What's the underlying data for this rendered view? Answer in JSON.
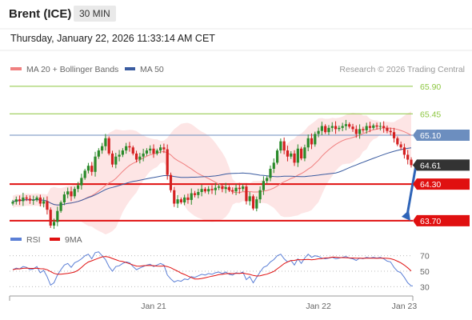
{
  "header": {
    "instrument": "Brent (ICE)",
    "timeframe": "30 MIN",
    "datetime": "Thursday, January 22, 2026 11:33:14 AM CET",
    "credit": "Research © 2026 Trading Central"
  },
  "colors": {
    "candle_up": "#2a8a2a",
    "candle_down": "#d42020",
    "bollinger_fill": "#fde0e0",
    "ma20": "#f08080",
    "ma50": "#3a5ba0",
    "resistance": "#8cc63f",
    "pivot": "#6c8ebf",
    "support": "#e01010",
    "current_price": "#333333",
    "rsi": "#5b7fd6",
    "rsi_ma": "#e01010",
    "arrow": "#2e64b8"
  },
  "chart_data": [
    {
      "type": "candlestick",
      "legend": [
        {
          "label": "MA 20 + Bollinger Bands",
          "color": "#f08080"
        },
        {
          "label": "MA 50",
          "color": "#3a5ba0"
        }
      ],
      "x_ticks": [
        "Jan 21",
        "Jan 22",
        "Jan 23"
      ],
      "ylim": [
        63.62,
        66.03
      ],
      "levels": [
        {
          "label": "65.90",
          "value": 65.9,
          "kind": "resistance"
        },
        {
          "label": "65.45",
          "value": 65.45,
          "kind": "resistance"
        },
        {
          "label": "65.10",
          "value": 65.1,
          "kind": "pivot"
        },
        {
          "label": "64.61",
          "value": 64.61,
          "kind": "current"
        },
        {
          "label": "64.30",
          "value": 64.3,
          "kind": "support"
        },
        {
          "label": "63.70",
          "value": 63.7,
          "kind": "support"
        }
      ],
      "close": [
        64.01,
        64.05,
        64.02,
        64.08,
        64.06,
        64.03,
        64.04,
        64.08,
        63.98,
        64.02,
        63.88,
        63.62,
        63.68,
        63.86,
        64.0,
        64.13,
        64.18,
        64.1,
        64.22,
        64.28,
        64.4,
        64.52,
        64.6,
        64.5,
        64.75,
        64.85,
        64.92,
        65.05,
        64.8,
        64.62,
        64.75,
        64.78,
        64.85,
        64.92,
        64.9,
        64.8,
        64.7,
        64.75,
        64.8,
        64.85,
        64.88,
        64.8,
        64.85,
        64.9,
        64.87,
        64.45,
        64.2,
        63.98,
        64.05,
        64.0,
        64.08,
        64.04,
        64.15,
        64.12,
        64.17,
        64.22,
        64.18,
        64.22,
        64.2,
        64.24,
        64.26,
        64.22,
        64.25,
        64.2,
        64.18,
        64.24,
        64.22,
        64.26,
        64.02,
        64.1,
        63.9,
        64.05,
        64.2,
        64.35,
        64.4,
        64.55,
        64.65,
        64.85,
        65.0,
        64.85,
        64.75,
        64.8,
        64.65,
        64.88,
        64.72,
        64.9,
        65.05,
        64.95,
        65.12,
        65.17,
        65.25,
        65.15,
        65.22,
        65.25,
        65.2,
        65.22,
        65.25,
        65.28,
        65.24,
        65.2,
        65.12,
        65.2,
        65.18,
        65.25,
        65.22,
        65.26,
        65.24,
        65.25,
        65.22,
        65.17,
        65.15,
        65.05,
        64.95,
        64.9,
        64.78,
        64.7,
        64.61
      ],
      "rsi": {
        "legend": [
          {
            "label": "RSI",
            "color": "#5b7fd6"
          },
          {
            "label": "9MA",
            "color": "#e01010"
          }
        ],
        "ylim": [
          20,
          80
        ],
        "levels": [
          70,
          50,
          30
        ],
        "values": [
          52,
          54,
          53,
          56,
          55,
          52,
          53,
          56,
          48,
          51,
          43,
          32,
          35,
          45,
          52,
          58,
          60,
          55,
          61,
          63,
          66,
          70,
          72,
          66,
          74,
          75,
          70,
          65,
          56,
          50,
          56,
          57,
          60,
          62,
          61,
          56,
          52,
          54,
          56,
          58,
          59,
          56,
          58,
          60,
          58,
          45,
          40,
          36,
          38,
          37,
          40,
          39,
          43,
          42,
          44,
          46,
          45,
          47,
          46,
          48,
          49,
          47,
          49,
          46,
          45,
          48,
          47,
          49,
          39,
          43,
          35,
          42,
          49,
          55,
          57,
          62,
          65,
          70,
          72,
          66,
          62,
          64,
          58,
          66,
          60,
          67,
          72,
          68,
          70,
          69,
          67,
          66,
          67,
          68,
          66,
          67,
          68,
          69,
          67,
          66,
          64,
          67,
          66,
          68,
          67,
          68,
          67,
          68,
          66,
          63,
          62,
          55,
          50,
          48,
          42,
          35,
          31
        ]
      }
    }
  ]
}
